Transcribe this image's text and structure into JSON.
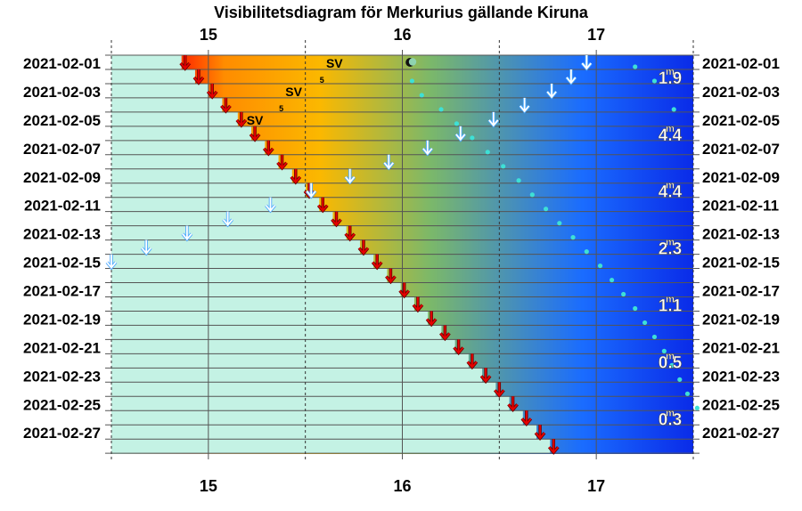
{
  "title": "Visibilitetsdiagram för Merkurius gällande Kiruna",
  "chart_data": {
    "type": "visibility-diagram",
    "title": "Visibilitetsdiagram för Merkurius gällande Kiruna",
    "x_axis": {
      "unit": "hour",
      "range": [
        14.5,
        17.5
      ],
      "ticks": [
        "15",
        "16",
        "17"
      ],
      "tick_values": [
        15,
        16,
        17
      ]
    },
    "y_axis": {
      "start_date": "2021-02-01",
      "label_dates": [
        "2021-02-01",
        "2021-02-03",
        "2021-02-05",
        "2021-02-07",
        "2021-02-09",
        "2021-02-11",
        "2021-02-13",
        "2021-02-15",
        "2021-02-17",
        "2021-02-19",
        "2021-02-21",
        "2021-02-23",
        "2021-02-25",
        "2021-02-27"
      ]
    },
    "sunset": [
      {
        "date": "2021-02-01",
        "hour": 14.88
      },
      {
        "date": "2021-02-02",
        "hour": 14.95
      },
      {
        "date": "2021-02-03",
        "hour": 15.02
      },
      {
        "date": "2021-02-04",
        "hour": 15.09
      },
      {
        "date": "2021-02-05",
        "hour": 15.17
      },
      {
        "date": "2021-02-06",
        "hour": 15.24
      },
      {
        "date": "2021-02-07",
        "hour": 15.31
      },
      {
        "date": "2021-02-08",
        "hour": 15.38
      },
      {
        "date": "2021-02-09",
        "hour": 15.45
      },
      {
        "date": "2021-02-10",
        "hour": 15.52
      },
      {
        "date": "2021-02-11",
        "hour": 15.59
      },
      {
        "date": "2021-02-12",
        "hour": 15.66
      },
      {
        "date": "2021-02-13",
        "hour": 15.73
      },
      {
        "date": "2021-02-14",
        "hour": 15.8
      },
      {
        "date": "2021-02-15",
        "hour": 15.87
      },
      {
        "date": "2021-02-16",
        "hour": 15.94
      },
      {
        "date": "2021-02-17",
        "hour": 16.01
      },
      {
        "date": "2021-02-18",
        "hour": 16.08
      },
      {
        "date": "2021-02-19",
        "hour": 16.15
      },
      {
        "date": "2021-02-20",
        "hour": 16.22
      },
      {
        "date": "2021-02-21",
        "hour": 16.29
      },
      {
        "date": "2021-02-22",
        "hour": 16.36
      },
      {
        "date": "2021-02-23",
        "hour": 16.43
      },
      {
        "date": "2021-02-24",
        "hour": 16.5
      },
      {
        "date": "2021-02-25",
        "hour": 16.57
      },
      {
        "date": "2021-02-26",
        "hour": 16.64
      },
      {
        "date": "2021-02-27",
        "hour": 16.71
      },
      {
        "date": "2021-02-28",
        "hour": 16.78
      }
    ],
    "mercury_set": [
      {
        "date": "2021-02-01",
        "hour": 16.95
      },
      {
        "date": "2021-02-02",
        "hour": 16.87
      },
      {
        "date": "2021-02-03",
        "hour": 16.77
      },
      {
        "date": "2021-02-04",
        "hour": 16.63
      },
      {
        "date": "2021-02-05",
        "hour": 16.47
      },
      {
        "date": "2021-02-06",
        "hour": 16.3
      },
      {
        "date": "2021-02-07",
        "hour": 16.13
      },
      {
        "date": "2021-02-08",
        "hour": 15.93
      },
      {
        "date": "2021-02-09",
        "hour": 15.73
      },
      {
        "date": "2021-02-10",
        "hour": 15.53
      },
      {
        "date": "2021-02-11",
        "hour": 15.32
      },
      {
        "date": "2021-02-12",
        "hour": 15.1
      },
      {
        "date": "2021-02-13",
        "hour": 14.89
      },
      {
        "date": "2021-02-14",
        "hour": 14.68
      },
      {
        "date": "2021-02-15",
        "hour": 14.5
      }
    ],
    "star_dots": [
      {
        "date": "2021-02-02",
        "hour": 16.05
      },
      {
        "date": "2021-02-03",
        "hour": 16.1
      },
      {
        "date": "2021-02-04",
        "hour": 16.2
      },
      {
        "date": "2021-02-05",
        "hour": 16.28
      },
      {
        "date": "2021-02-06",
        "hour": 16.36
      },
      {
        "date": "2021-02-07",
        "hour": 16.44
      },
      {
        "date": "2021-02-08",
        "hour": 16.52
      },
      {
        "date": "2021-02-09",
        "hour": 16.6
      },
      {
        "date": "2021-02-10",
        "hour": 16.67
      },
      {
        "date": "2021-02-11",
        "hour": 16.74
      },
      {
        "date": "2021-02-12",
        "hour": 16.81
      },
      {
        "date": "2021-02-13",
        "hour": 16.88
      },
      {
        "date": "2021-02-14",
        "hour": 16.95
      },
      {
        "date": "2021-02-15",
        "hour": 17.02
      },
      {
        "date": "2021-02-16",
        "hour": 17.08
      },
      {
        "date": "2021-02-17",
        "hour": 17.14
      },
      {
        "date": "2021-02-18",
        "hour": 17.2
      },
      {
        "date": "2021-02-19",
        "hour": 17.25
      },
      {
        "date": "2021-02-20",
        "hour": 17.3
      },
      {
        "date": "2021-02-21",
        "hour": 17.35
      },
      {
        "date": "2021-02-22",
        "hour": 17.39
      },
      {
        "date": "2021-02-23",
        "hour": 17.43
      },
      {
        "date": "2021-02-24",
        "hour": 17.47
      },
      {
        "date": "2021-02-25",
        "hour": 17.52
      },
      {
        "date": "2021-02-01",
        "hour": 17.2
      },
      {
        "date": "2021-02-02",
        "hour": 17.3
      },
      {
        "date": "2021-02-04",
        "hour": 17.4
      }
    ],
    "moon": {
      "date": "2021-02-01",
      "hour": 16.04
    },
    "sv_labels": [
      {
        "date": "2021-02-01",
        "hour": 15.65,
        "text": "SV",
        "sub": "5"
      },
      {
        "date": "2021-02-03",
        "hour": 15.44,
        "text": "SV",
        "sub": "5"
      },
      {
        "date": "2021-02-05",
        "hour": 15.24,
        "text": "SV",
        "sub": ""
      }
    ],
    "magnitudes": [
      {
        "date": "2021-02-02",
        "text": "1.9"
      },
      {
        "date": "2021-02-06",
        "text": "4.4"
      },
      {
        "date": "2021-02-10",
        "text": "4.4"
      },
      {
        "date": "2021-02-14",
        "text": "2.3"
      },
      {
        "date": "2021-02-18",
        "text": "1.1"
      },
      {
        "date": "2021-02-22",
        "text": "0.5"
      },
      {
        "date": "2021-02-26",
        "text": "0.3"
      }
    ],
    "magnitude_sup": "m",
    "colors": {
      "day": "#c4f2e4",
      "twilight": [
        "#ff3a00",
        "#ff8c00",
        "#fbb800",
        "#7bb86a",
        "#1a6cff",
        "#0a2be8"
      ],
      "sunset_arrow": "#e80000",
      "mercury_arrow": "#4aa8ff",
      "dots": "#3ee0d6",
      "grid": "#555555"
    }
  }
}
